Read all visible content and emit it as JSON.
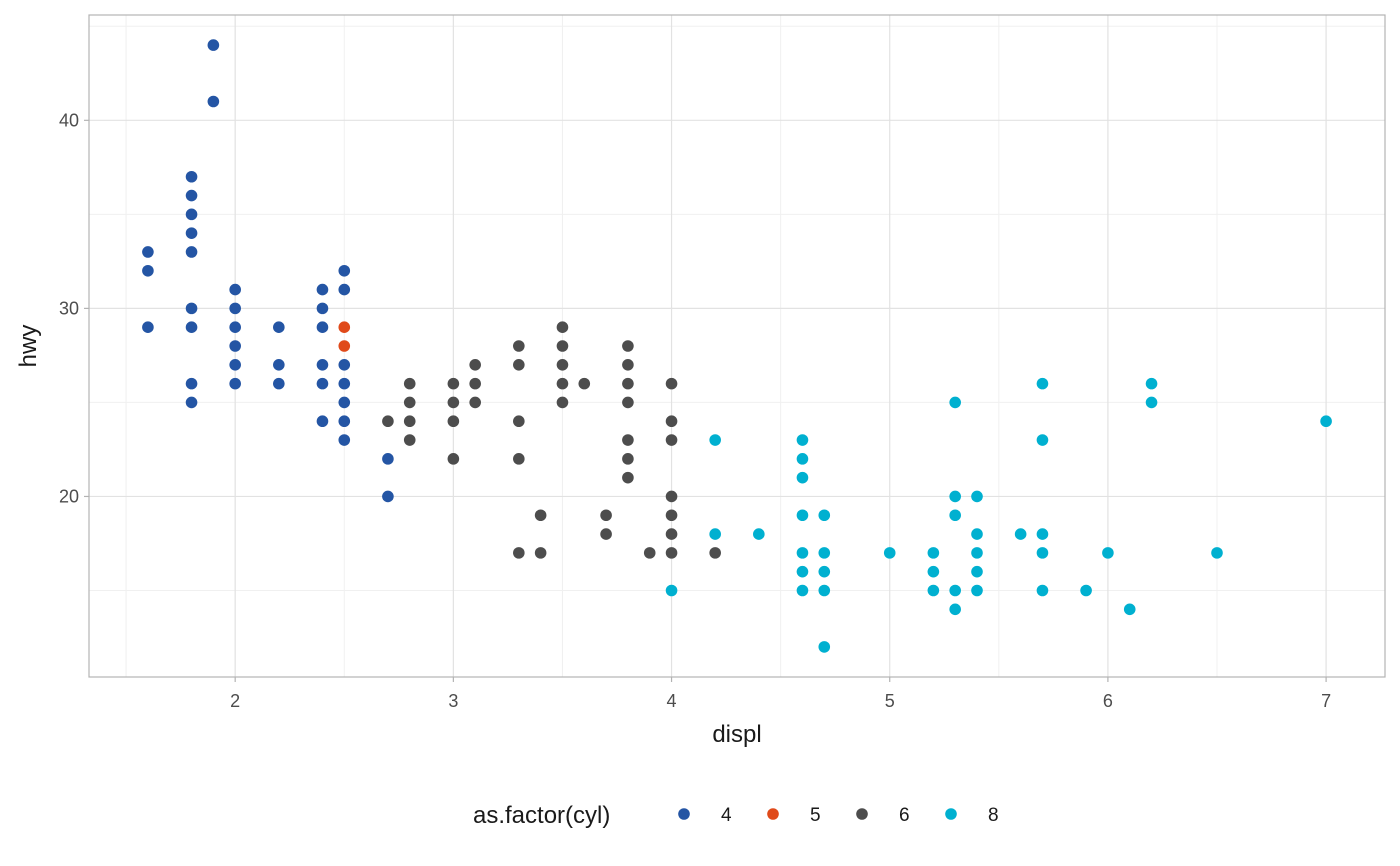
{
  "chart_data": {
    "type": "scatter",
    "xlabel": "displ",
    "ylabel": "hwy",
    "xlim": [
      1.33,
      7.27
    ],
    "ylim": [
      10.4,
      45.6
    ],
    "x_ticks": [
      2,
      3,
      4,
      5,
      6,
      7
    ],
    "y_ticks": [
      20,
      30,
      40
    ],
    "grid": true,
    "legend": {
      "title": "as.factor(cyl)",
      "position": "bottom",
      "entries": [
        "4",
        "5",
        "6",
        "8"
      ]
    },
    "colors": {
      "4": "#2455a4",
      "5": "#e04a1a",
      "6": "#4d4d4d",
      "8": "#00b0d0"
    },
    "series": [
      {
        "name": "4",
        "points": [
          [
            1.6,
            33
          ],
          [
            1.6,
            32
          ],
          [
            1.6,
            29
          ],
          [
            1.8,
            37
          ],
          [
            1.8,
            36
          ],
          [
            1.8,
            35
          ],
          [
            1.8,
            34
          ],
          [
            1.8,
            33
          ],
          [
            1.8,
            30
          ],
          [
            1.8,
            29
          ],
          [
            1.8,
            26
          ],
          [
            1.8,
            25
          ],
          [
            1.9,
            44
          ],
          [
            1.9,
            41
          ],
          [
            2.0,
            31
          ],
          [
            2.0,
            30
          ],
          [
            2.0,
            29
          ],
          [
            2.0,
            28
          ],
          [
            2.0,
            27
          ],
          [
            2.0,
            26
          ],
          [
            2.2,
            29
          ],
          [
            2.2,
            27
          ],
          [
            2.2,
            26
          ],
          [
            2.4,
            31
          ],
          [
            2.4,
            30
          ],
          [
            2.4,
            29
          ],
          [
            2.4,
            27
          ],
          [
            2.4,
            26
          ],
          [
            2.4,
            24
          ],
          [
            2.5,
            32
          ],
          [
            2.5,
            31
          ],
          [
            2.5,
            27
          ],
          [
            2.5,
            26
          ],
          [
            2.5,
            25
          ],
          [
            2.5,
            24
          ],
          [
            2.5,
            23
          ],
          [
            2.7,
            22
          ],
          [
            2.7,
            20
          ]
        ]
      },
      {
        "name": "5",
        "points": [
          [
            2.5,
            29
          ],
          [
            2.5,
            28
          ]
        ]
      },
      {
        "name": "6",
        "points": [
          [
            2.7,
            24
          ],
          [
            2.8,
            26
          ],
          [
            2.8,
            25
          ],
          [
            2.8,
            24
          ],
          [
            2.8,
            23
          ],
          [
            3.0,
            26
          ],
          [
            3.0,
            25
          ],
          [
            3.0,
            24
          ],
          [
            3.0,
            22
          ],
          [
            3.1,
            27
          ],
          [
            3.1,
            26
          ],
          [
            3.1,
            25
          ],
          [
            3.3,
            28
          ],
          [
            3.3,
            27
          ],
          [
            3.3,
            24
          ],
          [
            3.3,
            22
          ],
          [
            3.3,
            17
          ],
          [
            3.4,
            19
          ],
          [
            3.4,
            17
          ],
          [
            3.5,
            29
          ],
          [
            3.5,
            28
          ],
          [
            3.5,
            27
          ],
          [
            3.5,
            26
          ],
          [
            3.5,
            25
          ],
          [
            3.6,
            26
          ],
          [
            3.7,
            19
          ],
          [
            3.7,
            18
          ],
          [
            3.8,
            28
          ],
          [
            3.8,
            27
          ],
          [
            3.8,
            26
          ],
          [
            3.8,
            25
          ],
          [
            3.8,
            23
          ],
          [
            3.8,
            22
          ],
          [
            3.8,
            21
          ],
          [
            3.9,
            17
          ],
          [
            4.0,
            26
          ],
          [
            4.0,
            24
          ],
          [
            4.0,
            23
          ],
          [
            4.0,
            20
          ],
          [
            4.0,
            19
          ],
          [
            4.0,
            18
          ],
          [
            4.0,
            17
          ],
          [
            4.2,
            17
          ]
        ]
      },
      {
        "name": "8",
        "points": [
          [
            4.0,
            15
          ],
          [
            4.2,
            23
          ],
          [
            4.2,
            18
          ],
          [
            4.4,
            18
          ],
          [
            4.6,
            23
          ],
          [
            4.6,
            22
          ],
          [
            4.6,
            21
          ],
          [
            4.6,
            19
          ],
          [
            4.6,
            17
          ],
          [
            4.6,
            16
          ],
          [
            4.6,
            15
          ],
          [
            4.7,
            19
          ],
          [
            4.7,
            17
          ],
          [
            4.7,
            16
          ],
          [
            4.7,
            15
          ],
          [
            4.7,
            12
          ],
          [
            5.0,
            17
          ],
          [
            5.2,
            17
          ],
          [
            5.2,
            16
          ],
          [
            5.2,
            15
          ],
          [
            5.3,
            25
          ],
          [
            5.3,
            20
          ],
          [
            5.3,
            19
          ],
          [
            5.3,
            15
          ],
          [
            5.3,
            14
          ],
          [
            5.4,
            20
          ],
          [
            5.4,
            18
          ],
          [
            5.4,
            17
          ],
          [
            5.4,
            16
          ],
          [
            5.4,
            15
          ],
          [
            5.6,
            18
          ],
          [
            5.7,
            26
          ],
          [
            5.7,
            23
          ],
          [
            5.7,
            18
          ],
          [
            5.7,
            17
          ],
          [
            5.7,
            15
          ],
          [
            5.9,
            15
          ],
          [
            6.0,
            17
          ],
          [
            6.1,
            14
          ],
          [
            6.2,
            26
          ],
          [
            6.2,
            25
          ],
          [
            6.5,
            17
          ],
          [
            7.0,
            24
          ]
        ]
      }
    ]
  }
}
